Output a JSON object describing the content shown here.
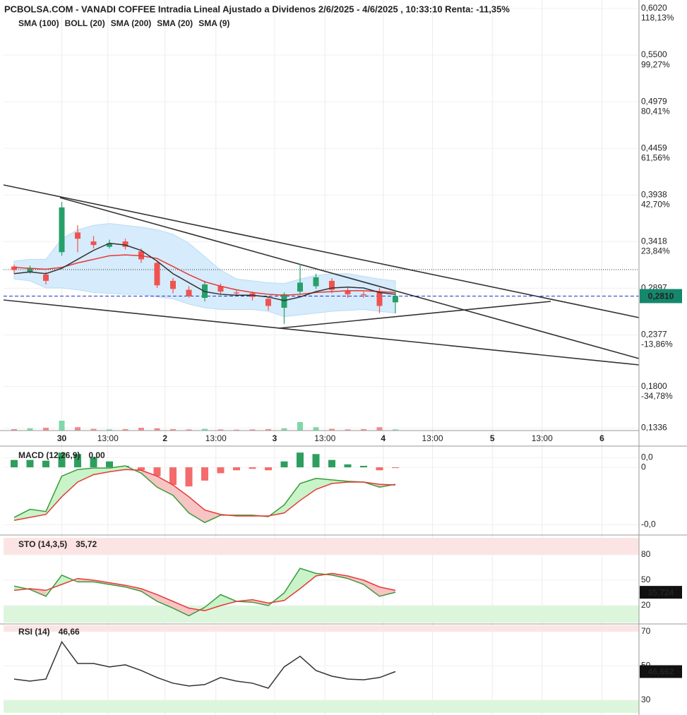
{
  "chart_data": [
    {
      "type": "candlestick",
      "title": "PCBOLSA.COM - VANADI COFFEE Intradia Lineal Ajustado a Dividenos 2/6/2025 - 4/6/2025 , 10:33:10 Renta: -11,35%",
      "x": [
        2,
        5,
        8,
        11,
        14,
        17,
        20,
        23,
        26,
        29,
        32,
        35,
        38,
        41,
        44,
        47,
        50,
        53,
        56,
        59,
        62,
        65,
        68,
        71,
        74
      ],
      "xlim": [
        0,
        120
      ],
      "xticks": [
        {
          "value": 11,
          "label": "30"
        },
        {
          "value": 19.7,
          "label": "13:00"
        },
        {
          "value": 30.5,
          "label": "2"
        },
        {
          "value": 40.1,
          "label": "13:00"
        },
        {
          "value": 51.2,
          "label": "3"
        },
        {
          "value": 60.7,
          "label": "13:00"
        },
        {
          "value": 71.7,
          "label": "4"
        },
        {
          "value": 81,
          "label": "13:00"
        },
        {
          "value": 92.3,
          "label": "5"
        },
        {
          "value": 101.7,
          "label": "13:00"
        },
        {
          "value": 113,
          "label": "6"
        }
      ],
      "open": [
        0.314,
        0.308,
        0.305,
        0.33,
        0.352,
        0.342,
        0.336,
        0.342,
        0.331,
        0.318,
        0.298,
        0.288,
        0.279,
        0.292,
        0.285,
        0.284,
        0.278,
        0.268,
        0.286,
        0.292,
        0.298,
        0.287,
        0.283,
        0.286,
        0.274
      ],
      "high": [
        0.316,
        0.315,
        0.308,
        0.386,
        0.36,
        0.348,
        0.344,
        0.345,
        0.334,
        0.32,
        0.301,
        0.292,
        0.298,
        0.295,
        0.288,
        0.286,
        0.28,
        0.285,
        0.317,
        0.306,
        0.301,
        0.29,
        0.286,
        0.29,
        0.288
      ],
      "low": [
        0.306,
        0.306,
        0.294,
        0.326,
        0.33,
        0.334,
        0.334,
        0.333,
        0.318,
        0.29,
        0.284,
        0.279,
        0.275,
        0.283,
        0.281,
        0.276,
        0.265,
        0.25,
        0.283,
        0.289,
        0.284,
        0.279,
        0.279,
        0.262,
        0.262
      ],
      "close": [
        0.31,
        0.312,
        0.298,
        0.38,
        0.345,
        0.338,
        0.34,
        0.336,
        0.322,
        0.293,
        0.289,
        0.281,
        0.294,
        0.286,
        0.284,
        0.28,
        0.27,
        0.283,
        0.296,
        0.302,
        0.288,
        0.283,
        0.282,
        0.27,
        0.281
      ],
      "up_color": "#26a069",
      "down_color": "#ef5350",
      "indicators": [
        {
          "name": "SMA (100)",
          "color": "#9fd0f0"
        },
        {
          "name": "BOLL (20)",
          "color": "#d0d0d0",
          "fill": "#d6ebfb",
          "upper": [
            0.32,
            0.322,
            0.322,
            0.345,
            0.355,
            0.36,
            0.362,
            0.36,
            0.358,
            0.355,
            0.35,
            0.34,
            0.325,
            0.31,
            0.3,
            0.298,
            0.296,
            0.295,
            0.3,
            0.304,
            0.306,
            0.306,
            0.303,
            0.3,
            0.298
          ],
          "lower": [
            0.3,
            0.298,
            0.29,
            0.29,
            0.288,
            0.285,
            0.284,
            0.283,
            0.283,
            0.28,
            0.278,
            0.272,
            0.268,
            0.266,
            0.266,
            0.266,
            0.264,
            0.258,
            0.26,
            0.262,
            0.264,
            0.265,
            0.266,
            0.264,
            0.262
          ]
        },
        {
          "name": "SMA (200)",
          "color": "#2ca02c"
        },
        {
          "name": "SMA (20)",
          "color": "#e53935",
          "values": [
            0.313,
            0.312,
            0.311,
            0.313,
            0.318,
            0.322,
            0.326,
            0.327,
            0.326,
            0.323,
            0.314,
            0.305,
            0.297,
            0.292,
            0.288,
            0.285,
            0.283,
            0.282,
            0.283,
            0.285,
            0.286,
            0.287,
            0.287,
            0.286,
            0.285
          ]
        },
        {
          "name": "SMA (9)",
          "color": "#333333",
          "values": [
            0.306,
            0.308,
            0.306,
            0.312,
            0.322,
            0.332,
            0.34,
            0.338,
            0.332,
            0.32,
            0.306,
            0.296,
            0.286,
            0.283,
            0.282,
            0.282,
            0.28,
            0.276,
            0.28,
            0.286,
            0.29,
            0.291,
            0.29,
            0.285,
            0.283
          ]
        }
      ],
      "volume": {
        "values": [
          5,
          8,
          10,
          35,
          12,
          6,
          4,
          5,
          10,
          8,
          5,
          4,
          6,
          4,
          3,
          4,
          5,
          8,
          30,
          12,
          6,
          4,
          5,
          12,
          4
        ],
        "ylim": [
          0,
          100
        ],
        "up_color": "#7fd8a8",
        "down_color": "#f28b8b"
      },
      "ylim": [
        0.1309,
        0.6036
      ],
      "yticks": [
        {
          "value": 0.602,
          "label": "0,6020"
        },
        {
          "value": 0.55,
          "label": "0,5500"
        },
        {
          "value": 0.4979,
          "label": "0,4979"
        },
        {
          "value": 0.4459,
          "label": "0,4459"
        },
        {
          "value": 0.3938,
          "label": "0,3938"
        },
        {
          "value": 0.3418,
          "label": "0,3418"
        },
        {
          "value": 0.2897,
          "label": "0,2897"
        },
        {
          "value": 0.2377,
          "label": "0,2377"
        },
        {
          "value": 0.18,
          "label": "0,1800"
        },
        {
          "value": 0.1336,
          "label": "0,1336"
        }
      ],
      "y2lim": [
        -52.57,
        118.71
      ],
      "y2ticks": [
        {
          "value": 118.13,
          "label": "118,13%"
        },
        {
          "value": 99.27,
          "label": "99,27%"
        },
        {
          "value": 80.41,
          "label": "80,41%"
        },
        {
          "value": 61.56,
          "label": "61,56%"
        },
        {
          "value": 42.7,
          "label": "42,70%"
        },
        {
          "value": 23.84,
          "label": "23,84%"
        },
        {
          "value": -13.86,
          "label": "-13,86%"
        },
        {
          "value": -34.78,
          "label": "-34,78%"
        }
      ],
      "last": {
        "value": 0.281,
        "label": "0,2810",
        "color": "#15876c"
      },
      "ref_line": 0.3105,
      "grid": true
    },
    {
      "type": "macd",
      "title": "MACD (12,26,9)",
      "readout": "0,00",
      "histogram": [
        0.001,
        0.001,
        0.0009,
        0.002,
        0.0018,
        0.0014,
        0.0008,
        0.0002,
        -0.0004,
        -0.0012,
        -0.0024,
        -0.0026,
        -0.0018,
        -0.0008,
        -0.0004,
        -0.0002,
        -0.0004,
        0.0008,
        0.002,
        0.0018,
        0.001,
        0.0004,
        0.0002,
        -0.0004,
        -0.0001
      ],
      "hist_up": "#2e9e5e",
      "hist_down": "#f46b6b",
      "fill_up": "#c9f3c9",
      "fill_down": "#f7c4c4",
      "series": [
        {
          "color": "#3a9b3a",
          "values": [
            -0.0068,
            -0.0057,
            -0.006,
            -0.0012,
            -0.0003,
            -0.0001,
            -0.0001,
            0.0002,
            -0.0008,
            -0.0027,
            -0.0038,
            -0.0062,
            -0.0075,
            -0.0065,
            -0.0065,
            -0.0065,
            -0.0067,
            -0.0051,
            -0.0022,
            -0.0015,
            -0.0017,
            -0.0019,
            -0.002,
            -0.0027,
            -0.0023
          ]
        },
        {
          "color": "#e53935",
          "values": [
            -0.0072,
            -0.0068,
            -0.0064,
            -0.004,
            -0.002,
            -0.001,
            -0.0006,
            -0.0003,
            -0.0004,
            -0.0012,
            -0.0024,
            -0.004,
            -0.0058,
            -0.0064,
            -0.0066,
            -0.0066,
            -0.0066,
            -0.0062,
            -0.0045,
            -0.003,
            -0.0022,
            -0.002,
            -0.002,
            -0.0023,
            -0.0024
          ]
        }
      ],
      "ylim": [
        -0.009,
        0.0025
      ],
      "yticks": [
        {
          "value": 0.0013,
          "label": "0,0"
        },
        {
          "value": 0,
          "label": "0"
        },
        {
          "value": -0.0078,
          "label": "-0,0"
        }
      ]
    },
    {
      "type": "oscillator",
      "title": "STO (14,3,5)",
      "readout": "35,72",
      "last_label": "35,724",
      "overbought": 80,
      "oversold": 20,
      "ob_color": "#fde4e4",
      "os_color": "#dcf6dc",
      "fill_up": "#c9f3c9",
      "fill_down": "#f7c4c4",
      "series": [
        {
          "color": "#3a9b3a",
          "values": [
            43,
            39,
            31,
            56,
            48,
            48,
            45,
            42,
            37,
            25,
            17,
            8,
            18,
            33,
            25,
            24,
            20,
            35,
            64,
            58,
            56,
            52,
            45,
            31,
            35.724
          ]
        },
        {
          "color": "#e53935",
          "values": [
            38,
            40,
            38,
            45,
            52,
            50,
            47,
            44,
            40,
            33,
            25,
            17,
            14,
            20,
            25,
            27,
            23,
            26,
            40,
            55,
            58,
            55,
            50,
            42,
            38
          ]
        }
      ],
      "ylim": [
        0,
        100
      ],
      "yticks": [
        80,
        50,
        20
      ]
    },
    {
      "type": "oscillator",
      "title": "RSI (14)",
      "readout": "46,66",
      "last_label": "46,662",
      "overbought": 70,
      "oversold": 30,
      "ob_color": "#fde4e4",
      "os_color": "#dcf6dc",
      "series": [
        {
          "color": "#333333",
          "values": [
            42.3,
            41.1,
            42.3,
            64,
            51.4,
            51.4,
            49.4,
            50.6,
            47.3,
            43.2,
            39.9,
            38.3,
            39.1,
            43.2,
            41.1,
            39.9,
            37.0,
            49.4,
            55.6,
            47.3,
            44.0,
            42.3,
            41.9,
            43.2,
            46.662
          ]
        }
      ],
      "ylim": [
        22.6,
        73.6
      ],
      "yticks": [
        70,
        50,
        30
      ]
    }
  ]
}
